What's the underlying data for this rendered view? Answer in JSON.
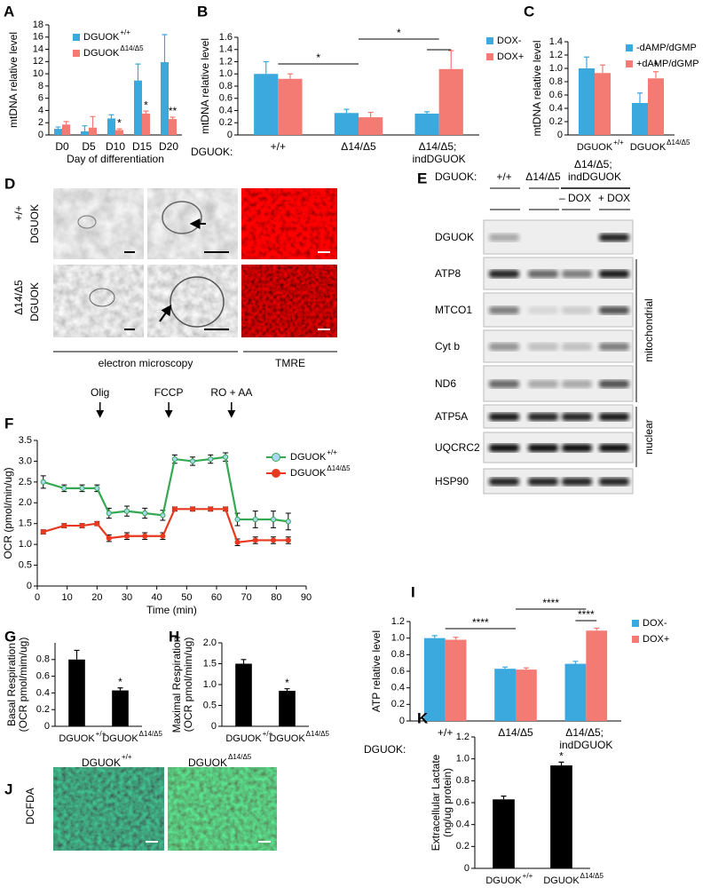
{
  "chart_data": [
    {
      "type": "bar",
      "panel": "A",
      "ylabel": [
        "mtDNA relative level"
      ],
      "xlabel": "Day of differentiation",
      "categories": [
        "D0",
        "D5",
        "D10",
        "D15",
        "D20"
      ],
      "series": [
        {
          "name": "DGUOK",
          "name_sup": "+/+",
          "color": "#3ba8de",
          "values": [
            1.0,
            0.6,
            2.7,
            8.9,
            11.9
          ],
          "errors": [
            0.3,
            0.9,
            0.6,
            2.7,
            4.5
          ]
        },
        {
          "name": "DGUOK",
          "name_sup": "Δ14/Δ5",
          "color": "#f47b73",
          "values": [
            1.7,
            1.2,
            0.8,
            3.5,
            2.6
          ],
          "errors": [
            0.5,
            1.8,
            0.2,
            0.4,
            0.3
          ]
        }
      ],
      "ylim": [
        0,
        18
      ],
      "yticks": [
        0,
        2,
        4,
        6,
        8,
        10,
        12,
        14,
        16,
        18
      ],
      "annotations": [
        "*",
        "*",
        "**"
      ]
    },
    {
      "type": "bar",
      "panel": "B",
      "ylabel": [
        "mtDNA relative level"
      ],
      "row_label": "DGUOK:",
      "categories": [
        "+/+",
        "Δ14/Δ5",
        "Δ14/Δ5; indDGUOK"
      ],
      "series": [
        {
          "name": "DOX-",
          "color": "#3ba8de",
          "values": [
            1.0,
            0.36,
            0.35
          ],
          "errors": [
            0.2,
            0.06,
            0.03
          ]
        },
        {
          "name": "DOX+",
          "color": "#f47b73",
          "values": [
            0.92,
            0.29,
            1.08
          ],
          "errors": [
            0.08,
            0.08,
            0.3
          ]
        }
      ],
      "ylim": [
        0,
        1.6
      ],
      "yticks": [
        0,
        0.2,
        0.4,
        0.6,
        0.8,
        {
          "value": 1,
          "label": "1.0"
        },
        1.2,
        1.4,
        1.6
      ],
      "annotations": [
        "*",
        "*"
      ]
    },
    {
      "type": "bar",
      "panel": "C",
      "ylabel": [
        "mtDNA relative level"
      ],
      "categories": [
        "DGUOK",
        "DGUOK"
      ],
      "category_sups": [
        "+/+",
        "Δ14/Δ5"
      ],
      "series": [
        {
          "name": "-dAMP/dGMP",
          "color": "#3ba8de",
          "values": [
            1.0,
            0.48
          ],
          "errors": [
            0.17,
            0.15
          ]
        },
        {
          "name": "+dAMP/dGMP",
          "color": "#f47b73",
          "values": [
            0.93,
            0.85
          ],
          "errors": [
            0.12,
            0.1
          ]
        }
      ],
      "ylim": [
        0,
        1.4
      ],
      "yticks": [
        0,
        0.2,
        0.4,
        0.6,
        0.8,
        {
          "value": 1,
          "label": "1.0"
        },
        1.2,
        1.4
      ],
      "annotations": [
        "*"
      ]
    },
    {
      "type": "line",
      "panel": "F",
      "ylabel": [
        "OCR (pmol/min/ug)"
      ],
      "xlabel": "Time (min)",
      "x": [
        2,
        9,
        15,
        20,
        24,
        30,
        36,
        42,
        46,
        52,
        58,
        63,
        67,
        73,
        79,
        84
      ],
      "series": [
        {
          "name": "DGUOK",
          "name_sup": "+/+",
          "color": "#34a853",
          "marker_color": "#a9d9f2",
          "values": [
            2.5,
            2.35,
            2.35,
            2.35,
            1.75,
            1.8,
            1.75,
            1.7,
            3.05,
            3.0,
            3.05,
            3.1,
            1.6,
            1.6,
            1.6,
            1.55
          ],
          "errors": [
            0.15,
            0.08,
            0.08,
            0.08,
            0.12,
            0.12,
            0.12,
            0.12,
            0.1,
            0.1,
            0.1,
            0.1,
            0.15,
            0.2,
            0.2,
            0.2
          ]
        },
        {
          "name": "DGUOK",
          "name_sup": "Δ14/Δ5",
          "color": "#e8381f",
          "marker_color": "#e8381f",
          "values": [
            1.3,
            1.45,
            1.45,
            1.5,
            1.15,
            1.2,
            1.2,
            1.2,
            1.85,
            1.85,
            1.85,
            1.85,
            1.05,
            1.1,
            1.1,
            1.1
          ],
          "errors": [
            0.05,
            0.05,
            0.05,
            0.05,
            0.08,
            0.08,
            0.08,
            0.08,
            0.05,
            0.05,
            0.05,
            0.05,
            0.08,
            0.08,
            0.08,
            0.08
          ]
        }
      ],
      "xlim": [
        0,
        90
      ],
      "xticks": [
        0,
        10,
        20,
        30,
        40,
        50,
        60,
        70,
        80,
        90
      ],
      "ylim": [
        0,
        3.5
      ],
      "yticks": [
        0,
        0.5,
        {
          "value": 1,
          "label": "1.0"
        },
        1.5,
        {
          "value": 2,
          "label": "2.0"
        },
        2.5,
        {
          "value": 3,
          "label": "3.0"
        },
        3.5
      ],
      "treatments": [
        {
          "label": "Olig",
          "x": 21
        },
        {
          "label": "FCCP",
          "x": 44
        },
        {
          "label": "RO + AA",
          "x": 65
        }
      ]
    },
    {
      "type": "bar",
      "panel": "G",
      "ylabel": [
        "Basal Respiration",
        "(OCR pmol/mim/ug)"
      ],
      "categories": [
        "DGUOK",
        "DGUOK"
      ],
      "category_sups": [
        "+/+",
        "Δ14/Δ5"
      ],
      "color": "#000000",
      "values": [
        0.8,
        0.43
      ],
      "errors": [
        0.11,
        0.03
      ],
      "ylim": [
        0,
        1
      ],
      "yticks": [
        0,
        0.2,
        0.4,
        0.6,
        0.8
      ],
      "annotations": [
        "*"
      ]
    },
    {
      "type": "bar",
      "panel": "H",
      "ylabel": [
        "Maximal Respiration",
        "(OCR pmol/mim/ug)"
      ],
      "categories": [
        "DGUOK",
        "DGUOK"
      ],
      "category_sups": [
        "+/+",
        "Δ14/Δ5"
      ],
      "color": "#000000",
      "values": [
        1.5,
        0.85
      ],
      "errors": [
        0.1,
        0.05
      ],
      "ylim": [
        0,
        2
      ],
      "yticks": [
        0,
        0.5,
        {
          "value": 1,
          "label": "1.0"
        },
        1.5,
        {
          "value": 2,
          "label": "2.0"
        }
      ],
      "annotations": [
        "*"
      ]
    },
    {
      "type": "bar",
      "panel": "I",
      "ylabel": [
        "ATP relative level"
      ],
      "row_label": "DGUOK:",
      "categories": [
        "+/+",
        "Δ14/Δ5",
        "Δ14/Δ5; indDGUOK"
      ],
      "series": [
        {
          "name": "DOX-",
          "color": "#3ba8de",
          "values": [
            1.0,
            0.63,
            0.69
          ],
          "errors": [
            0.03,
            0.02,
            0.03
          ]
        },
        {
          "name": "DOX+",
          "color": "#f47b73",
          "values": [
            0.98,
            0.62,
            1.09
          ],
          "errors": [
            0.03,
            0.02,
            0.03
          ]
        }
      ],
      "ylim": [
        0,
        1.2
      ],
      "yticks": [
        0,
        0.2,
        0.4,
        0.6,
        0.8,
        {
          "value": 1,
          "label": "1.0"
        },
        1.2
      ],
      "annotations": [
        "****",
        "****",
        "****"
      ]
    },
    {
      "type": "bar",
      "panel": "K",
      "ylabel": [
        "Extracellular Lactate",
        "(ng/ug protein)"
      ],
      "categories": [
        "DGUOK",
        "DGUOK"
      ],
      "category_sups": [
        "+/+",
        "Δ14/Δ5"
      ],
      "color": "#000000",
      "values": [
        0.63,
        0.94
      ],
      "errors": [
        0.03,
        0.03
      ],
      "ylim": [
        0,
        1.2
      ],
      "yticks": [
        0,
        0.2,
        0.4,
        0.6,
        0.8,
        {
          "value": 1,
          "label": "1.0"
        },
        1.2
      ],
      "annotations": [
        "*"
      ]
    }
  ],
  "figure": {
    "D": {
      "letter": "D",
      "rows": [
        {
          "genotype": "+/+",
          "gene": "DGUOK"
        },
        {
          "genotype": "Δ14/Δ5",
          "gene": "DGUOK"
        }
      ],
      "methods": [
        "electron microscopy",
        "TMRE"
      ]
    },
    "E": {
      "letter": "E",
      "genotype_label": "DGUOK:",
      "lanes": [
        "+/+",
        "Δ14/Δ5",
        "Δ14/Δ5; indDGUOK"
      ],
      "dox": [
        "– DOX",
        "+ DOX"
      ],
      "proteins": [
        "DGUOK",
        "ATP8",
        "MTCO1",
        "Cyt b",
        "ND6",
        "ATP5A",
        "UQCRC2",
        "HSP90"
      ],
      "groups": [
        "mitochondrial",
        "nuclear"
      ]
    },
    "J": {
      "letter": "J",
      "samples": [
        {
          "gene": "DGUOK",
          "genotype": "+/+"
        },
        {
          "gene": "DGUOK",
          "genotype": "Δ14/Δ5"
        }
      ],
      "stain": "DCFDA"
    }
  }
}
